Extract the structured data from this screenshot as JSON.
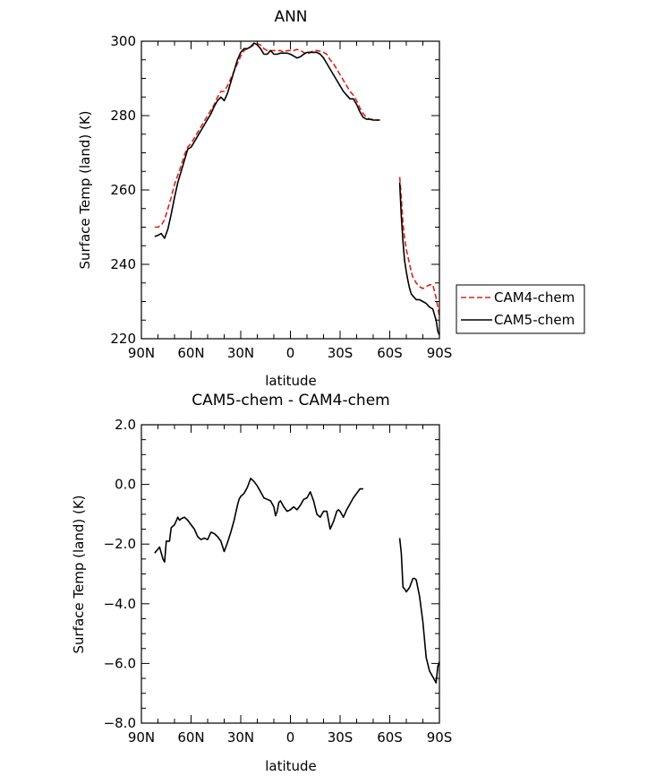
{
  "chart_data": [
    {
      "type": "line",
      "title": "ANN",
      "xlabel": "latitude",
      "ylabel": "Surface Temp (land) (K)",
      "xlim": [
        90,
        -90
      ],
      "ylim": [
        220,
        300
      ],
      "x_ticks": [
        90,
        60,
        30,
        0,
        -30,
        -60,
        -90
      ],
      "x_tick_labels": [
        "90N",
        "60N",
        "30N",
        "0",
        "30S",
        "60S",
        "90S"
      ],
      "y_ticks": [
        220,
        240,
        260,
        280,
        300
      ],
      "y_tick_labels": [
        "220",
        "240",
        "260",
        "280",
        "300"
      ],
      "legend": {
        "placement": "right",
        "entries": [
          "CAM4-chem",
          "CAM5-chem"
        ]
      },
      "series": [
        {
          "name": "CAM4-chem",
          "color": "#e0201b",
          "dash": "dashed",
          "segments": [
            {
              "x": [
                82,
                80,
                78,
                76,
                74,
                72,
                70,
                68,
                66,
                64,
                62,
                60,
                58,
                56,
                54,
                52,
                50,
                48,
                46,
                44,
                42,
                40,
                38,
                36,
                34,
                32,
                30,
                28,
                26,
                24,
                22,
                20,
                18,
                16,
                14,
                12,
                10,
                8,
                6,
                4,
                2,
                0,
                -2,
                -4,
                -6,
                -8,
                -10,
                -12,
                -14,
                -16,
                -18,
                -20,
                -22,
                -24,
                -26,
                -28,
                -30,
                -32,
                -34,
                -36,
                -38,
                -40,
                -42,
                -44,
                -46,
                -48,
                -50,
                -52,
                -54
              ],
              "y": [
                250,
                250,
                250.5,
                252,
                255,
                258,
                261.5,
                264,
                266.5,
                269.5,
                271.5,
                272.5,
                274,
                275.5,
                277,
                278.5,
                280,
                281.5,
                283,
                285,
                286.5,
                286.5,
                288,
                290,
                292,
                294,
                296,
                297.5,
                298,
                298.5,
                299,
                299.3,
                299,
                298,
                297.5,
                297.5,
                297.5,
                297.5,
                297.5,
                297,
                297.5,
                297.5,
                297.5,
                297.8,
                297.5,
                297,
                296.5,
                297,
                297.5,
                297.5,
                297.3,
                297,
                296.5,
                295,
                294,
                292.5,
                291,
                289.5,
                288,
                286.5,
                285.5,
                284,
                282,
                280.5,
                279.5,
                279,
                279,
                278.8,
                278.8
              ]
            },
            {
              "x": [
                -66,
                -67,
                -68,
                -69,
                -70,
                -71,
                -72,
                -73,
                -74,
                -76,
                -78,
                -80,
                -82,
                -84,
                -86,
                -88,
                -90
              ],
              "y": [
                263.5,
                258,
                251,
                247,
                244,
                242,
                240,
                238,
                236.5,
                235,
                234,
                233.5,
                234,
                234.5,
                234.5,
                231,
                226
              ]
            }
          ]
        },
        {
          "name": "CAM5-chem",
          "color": "#000000",
          "dash": "solid",
          "segments": [
            {
              "x": [
                82,
                80,
                78,
                76,
                74,
                72,
                70,
                68,
                66,
                64,
                62,
                60,
                58,
                56,
                54,
                52,
                50,
                48,
                46,
                44,
                42,
                40,
                38,
                36,
                34,
                32,
                30,
                28,
                26,
                24,
                22,
                20,
                18,
                16,
                14,
                12,
                10,
                8,
                6,
                4,
                2,
                0,
                -2,
                -4,
                -6,
                -8,
                -10,
                -12,
                -14,
                -16,
                -18,
                -20,
                -22,
                -24,
                -26,
                -28,
                -30,
                -32,
                -34,
                -36,
                -38,
                -40,
                -42,
                -44,
                -46,
                -48,
                -50,
                -52,
                -54
              ],
              "y": [
                247.5,
                247.8,
                248.3,
                247,
                249.5,
                253.5,
                258,
                262,
                265,
                268,
                271,
                271.5,
                273,
                274.5,
                276,
                277.5,
                279,
                280.5,
                282.5,
                284,
                285,
                284,
                286,
                289,
                292,
                295,
                297,
                298,
                298,
                298.5,
                299.5,
                299,
                298,
                296.5,
                296.5,
                297.5,
                296.5,
                296.5,
                296.8,
                296.8,
                296.8,
                296.5,
                296,
                295.5,
                295.8,
                296.5,
                297,
                297,
                297,
                297,
                296.5,
                295.5,
                294,
                292.5,
                291,
                289.5,
                288,
                286.5,
                285.5,
                284.5,
                284.5,
                283,
                281,
                279.5,
                279,
                279,
                278.8,
                278.8,
                278.8
              ]
            },
            {
              "x": [
                -66,
                -67,
                -68,
                -69,
                -70,
                -71,
                -72,
                -73,
                -74,
                -76,
                -78,
                -80,
                -82,
                -84,
                -86,
                -88,
                -89,
                -90
              ],
              "y": [
                262,
                253,
                246,
                241,
                238,
                235.5,
                233.5,
                232,
                231.5,
                230.5,
                230.5,
                230,
                229.5,
                228.5,
                228,
                225,
                222,
                221
              ]
            }
          ]
        }
      ]
    },
    {
      "type": "line",
      "title": "CAM5-chem  -  CAM4-chem",
      "xlabel": "latitude",
      "ylabel": "Surface Temp (land) (K)",
      "xlim": [
        90,
        -90
      ],
      "ylim": [
        -8.0,
        2.0
      ],
      "x_ticks": [
        90,
        60,
        30,
        0,
        -30,
        -60,
        -90
      ],
      "x_tick_labels": [
        "90N",
        "60N",
        "30N",
        "0",
        "30S",
        "60S",
        "90S"
      ],
      "y_ticks": [
        2.0,
        0.0,
        -2.0,
        -4.0,
        -6.0,
        -8.0
      ],
      "y_tick_labels": [
        "2.0",
        "0.0",
        "−2.0",
        "−4.0",
        "−6.0",
        "−8.0"
      ],
      "series": [
        {
          "color": "#000000",
          "dash": "solid",
          "segments": [
            {
              "x": [
                82,
                79,
                77,
                76,
                75,
                73,
                72,
                70,
                68,
                67,
                66,
                64,
                62,
                60,
                58,
                56,
                54,
                52,
                50,
                48,
                46,
                44,
                42,
                40,
                38,
                36,
                34,
                32,
                31,
                30,
                29,
                28,
                26,
                24,
                22,
                20,
                18,
                16,
                14,
                12,
                10,
                9,
                8,
                7,
                6,
                4,
                2,
                0,
                -2,
                -4,
                -6,
                -8,
                -10,
                -12,
                -14,
                -16,
                -18,
                -20,
                -22,
                -24,
                -26,
                -28,
                -29,
                -30,
                -32,
                -34,
                -36,
                -38,
                -40,
                -42,
                -44,
                -46,
                -48,
                -50,
                -52,
                -54
              ],
              "y": [
                -2.3,
                -2.1,
                -2.5,
                -2.6,
                -1.9,
                -1.9,
                -1.45,
                -1.35,
                -1.1,
                -1.2,
                -1.15,
                -1.1,
                -1.2,
                -1.35,
                -1.5,
                -1.75,
                -1.85,
                -1.8,
                -1.85,
                -1.6,
                -1.65,
                -1.75,
                -1.9,
                -2.25,
                -1.95,
                -1.6,
                -1.2,
                -0.7,
                -0.5,
                -0.4,
                -0.35,
                -0.3,
                -0.1,
                0.2,
                0.1,
                -0.05,
                -0.25,
                -0.45,
                -0.5,
                -0.55,
                -0.75,
                -1.05,
                -0.9,
                -0.6,
                -0.55,
                -0.75,
                -0.9,
                -0.85,
                -0.75,
                -0.85,
                -0.7,
                -0.5,
                -0.45,
                -0.25,
                -0.55,
                -1.0,
                -1.1,
                -0.9,
                -0.9,
                -1.5,
                -1.25,
                -0.9,
                -0.85,
                -0.9,
                -1.1,
                -0.85,
                -0.65,
                -0.45,
                -0.3,
                -0.15,
                -0.15,
                null,
                null,
                null,
                null,
                null
              ]
            },
            {
              "x": [
                -66,
                -67,
                -68,
                -69,
                -70,
                -72,
                -74,
                -75,
                -76,
                -78,
                -80,
                -82,
                -84,
                -86,
                -88,
                -89,
                -90
              ],
              "y": [
                -1.8,
                -2.3,
                -3.45,
                -3.5,
                -3.6,
                -3.45,
                -3.15,
                -3.15,
                -3.2,
                -3.75,
                -4.6,
                -5.8,
                -6.25,
                -6.45,
                -6.65,
                -6.1,
                -5.95
              ]
            }
          ]
        }
      ]
    }
  ]
}
